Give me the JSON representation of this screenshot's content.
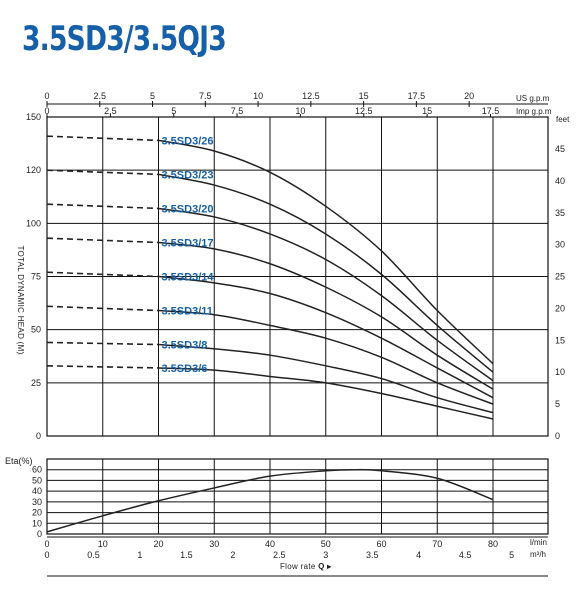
{
  "title": "3.5SD3/3.5QJ3",
  "chart_data": [
    {
      "type": "line",
      "name": "head",
      "ylabel": "TOTAL DYNAMIC HEAD (M)",
      "ylim": [
        0,
        150
      ],
      "xlim": [
        0,
        80
      ],
      "y_ticks": [
        "0",
        "25",
        "50",
        "75",
        "100",
        "120",
        "150"
      ],
      "y_right_unit": "feet",
      "y_right_ticks": [
        "0",
        "5",
        "10",
        "15",
        "20",
        "25",
        "30",
        "35",
        "40",
        "45"
      ],
      "top_axis_1": {
        "unit": "US g.p.m",
        "ticks": [
          "0",
          "2.5",
          "5",
          "7.5",
          "10",
          "12.5",
          "15",
          "17.5",
          "20"
        ]
      },
      "top_axis_2": {
        "unit": "Imp g.p.m",
        "ticks": [
          "0",
          "2.5",
          "5",
          "7.5",
          "10",
          "12.5",
          "15",
          "17.5"
        ]
      },
      "series": [
        {
          "name": "3.5SD3/26",
          "x": [
            0,
            20,
            30,
            40,
            50,
            60,
            70,
            80
          ],
          "y": [
            141,
            139,
            134,
            124,
            108,
            87,
            59,
            34
          ]
        },
        {
          "name": "3.5SD3/23",
          "x": [
            0,
            20,
            30,
            40,
            50,
            60,
            70,
            80
          ],
          "y": [
            125,
            123,
            118,
            109,
            95,
            76,
            52,
            30
          ]
        },
        {
          "name": "3.5SD3/20",
          "x": [
            0,
            20,
            30,
            40,
            50,
            60,
            70,
            80
          ],
          "y": [
            109,
            107,
            103,
            95,
            83,
            66,
            45,
            26
          ]
        },
        {
          "name": "3.5SD3/17",
          "x": [
            0,
            20,
            30,
            40,
            50,
            60,
            70,
            80
          ],
          "y": [
            93,
            91,
            88,
            81,
            70,
            56,
            38,
            22
          ]
        },
        {
          "name": "3.5SD3/14",
          "x": [
            0,
            20,
            30,
            40,
            50,
            60,
            70,
            80
          ],
          "y": [
            77,
            75,
            72,
            67,
            58,
            46,
            32,
            18
          ]
        },
        {
          "name": "3.5SD3/11",
          "x": [
            0,
            20,
            30,
            40,
            50,
            60,
            70,
            80
          ],
          "y": [
            61,
            59,
            57,
            52,
            46,
            37,
            25,
            15
          ]
        },
        {
          "name": "3.5SD3/8",
          "x": [
            0,
            20,
            30,
            40,
            50,
            60,
            70,
            80
          ],
          "y": [
            44,
            43,
            41,
            38,
            33,
            27,
            18,
            11
          ]
        },
        {
          "name": "3.5SD3/6",
          "x": [
            0,
            20,
            30,
            40,
            50,
            60,
            70,
            80
          ],
          "y": [
            33,
            32,
            31,
            28,
            25,
            20,
            14,
            8
          ]
        }
      ]
    },
    {
      "type": "line",
      "name": "efficiency",
      "ylabel": "Eta(%)",
      "ylim": [
        0,
        70
      ],
      "y_ticks": [
        "0",
        "10",
        "20",
        "30",
        "40",
        "50",
        "60"
      ],
      "x_ticks": [
        "0",
        "10",
        "20",
        "30",
        "40",
        "50",
        "60",
        "70",
        "80"
      ],
      "x_unit": "l/min",
      "x2_ticks": [
        "0",
        "0.5",
        "1",
        "1.5",
        "2",
        "2.5",
        "3",
        "3.5",
        "4",
        "4.5",
        "5"
      ],
      "x2_unit": "m³/h",
      "xlabel": "Flow rate",
      "xlabel_symbol": "Q ▸",
      "series": [
        {
          "x": [
            0,
            10,
            20,
            30,
            40,
            50,
            55,
            60,
            70,
            80
          ],
          "y": [
            2,
            17,
            31,
            43,
            54,
            59,
            60,
            59,
            52,
            32
          ]
        }
      ]
    }
  ]
}
